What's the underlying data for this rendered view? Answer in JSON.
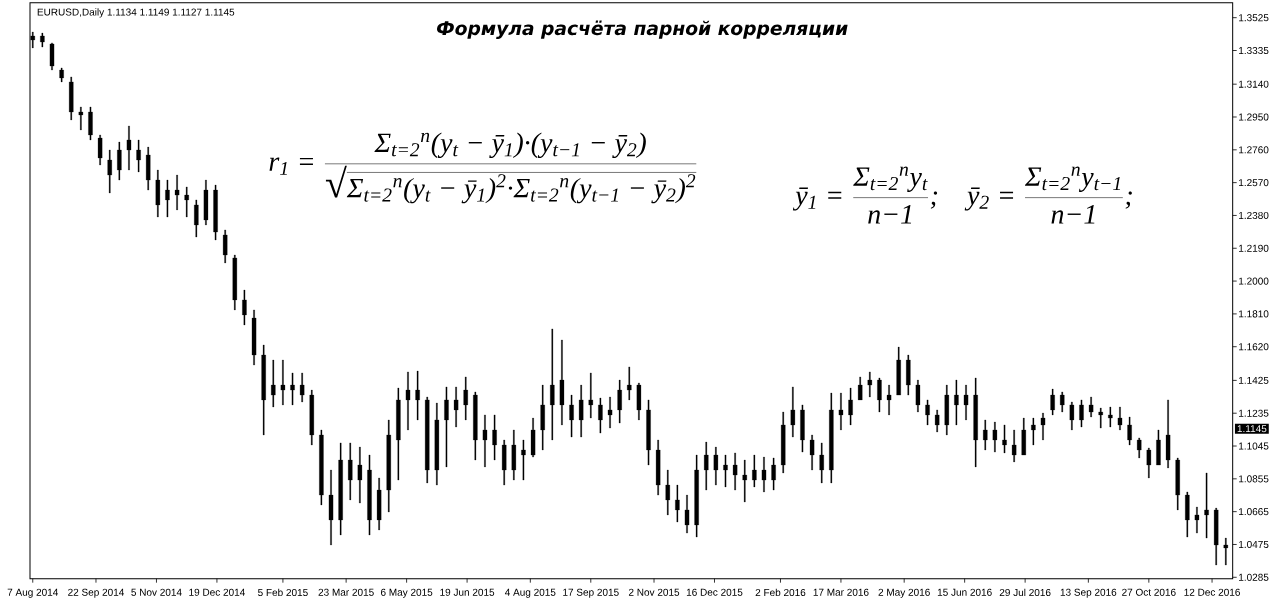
{
  "chart_data": {
    "type": "candlestick",
    "title": "Формула расчёта парной корреляции",
    "subtitle": "EURUSD,Daily 1.1134 1.1149 1.1127 1.1145",
    "annotations": [
      "r$_{1}$ =",
      "Σ$_{t=2}$$^{n}$(y$_{t}$ − ȳ$_{1}$)·(y$_{t−1}$ − ȳ$_{2}$)",
      "√",
      "Σ$_{t=2}$$^{n}$(y$_{t}$ − ȳ$_{1}$)$^{2}$·Σ$_{t=2}$$^{n}$(y$_{t−1}$ − ȳ$_{2}$)$^{2}$",
      "ȳ$_{1}$ =",
      "Σ$_{t=2}$$^{n}$y$_{t}$",
      "n−1",
      ";",
      "ȳ$_{2}$ =",
      "Σ$_{t=2}$$^{n}$y$_{t−1}$",
      "n−1",
      ";",
      "1.1145"
    ],
    "color": "#000000",
    "xlim": [
      "2014-08-05",
      "2016-12-27"
    ],
    "ylim": [
      1.0277,
      1.3612
    ],
    "xticks": [
      {
        "value": "2014-08-07",
        "label": "7 Aug 2014"
      },
      {
        "value": "2014-09-22",
        "label": "22 Sep 2014"
      },
      {
        "value": "2014-11-05",
        "label": "5 Nov 2014"
      },
      {
        "value": "2014-12-19",
        "label": "19 Dec 2014"
      },
      {
        "value": "2015-02-05",
        "label": "5 Feb 2015"
      },
      {
        "value": "2015-03-23",
        "label": "23 Mar 2015"
      },
      {
        "value": "2015-05-06",
        "label": "6 May 2015"
      },
      {
        "value": "2015-06-19",
        "label": "19 Jun 2015"
      },
      {
        "value": "2015-08-04",
        "label": "4 Aug 2015"
      },
      {
        "value": "2015-09-17",
        "label": "17 Sep 2015"
      },
      {
        "value": "2015-11-02",
        "label": "2 Nov 2015"
      },
      {
        "value": "2015-12-16",
        "label": "16 Dec 2015"
      },
      {
        "value": "2016-02-02",
        "label": "2 Feb 2016"
      },
      {
        "value": "2016-03-17",
        "label": "17 Mar 2016"
      },
      {
        "value": "2016-05-02",
        "label": "2 May 2016"
      },
      {
        "value": "2016-06-15",
        "label": "15 Jun 2016"
      },
      {
        "value": "2016-07-29",
        "label": "29 Jul 2016"
      },
      {
        "value": "2016-09-13",
        "label": "13 Sep 2016"
      },
      {
        "value": "2016-10-27",
        "label": "27 Oct 2016"
      },
      {
        "value": "2016-12-12",
        "label": "12 Dec 2016"
      }
    ],
    "yticks": [
      1.3525,
      1.3335,
      {
        "value": 1.314,
        "label": "1.3140"
      },
      {
        "value": 1.295,
        "label": "1.2950"
      },
      {
        "value": 1.276,
        "label": "1.2760"
      },
      {
        "value": 1.257,
        "label": "1.2570"
      },
      {
        "value": 1.238,
        "label": "1.2380"
      },
      {
        "value": 1.219,
        "label": "1.2190"
      },
      {
        "value": 1.2,
        "label": "1.2000"
      },
      {
        "value": 1.181,
        "label": "1.1810"
      },
      {
        "value": 1.162,
        "label": "1.1620"
      },
      1.1425,
      1.1235,
      1.1045,
      1.0855,
      1.0665,
      1.0475,
      1.0285
    ],
    "x": [
      "2014-08-07",
      "2014-08-14",
      "2014-08-21",
      "2014-08-28",
      "2014-09-04",
      "2014-09-11",
      "2014-09-18",
      "2014-09-25",
      "2014-10-02",
      "2014-10-09",
      "2014-10-16",
      "2014-10-23",
      "2014-10-30",
      "2014-11-06",
      "2014-11-13",
      "2014-11-20",
      "2014-11-27",
      "2014-12-04",
      "2014-12-11",
      "2014-12-18",
      "2014-12-25",
      "2015-01-01",
      "2015-01-08",
      "2015-01-15",
      "2015-01-22",
      "2015-01-29",
      "2015-02-05",
      "2015-02-12",
      "2015-02-19",
      "2015-02-26",
      "2015-03-05",
      "2015-03-12",
      "2015-03-19",
      "2015-03-26",
      "2015-04-02",
      "2015-04-09",
      "2015-04-16",
      "2015-04-23",
      "2015-04-30",
      "2015-05-07",
      "2015-05-14",
      "2015-05-21",
      "2015-05-28",
      "2015-06-04",
      "2015-06-11",
      "2015-06-18",
      "2015-06-25",
      "2015-07-02",
      "2015-07-09",
      "2015-07-16",
      "2015-07-23",
      "2015-07-30",
      "2015-08-06",
      "2015-08-13",
      "2015-08-20",
      "2015-08-27",
      "2015-09-03",
      "2015-09-10",
      "2015-09-17",
      "2015-09-24",
      "2015-10-01",
      "2015-10-08",
      "2015-10-15",
      "2015-10-22",
      "2015-10-29",
      "2015-11-05",
      "2015-11-12",
      "2015-11-19",
      "2015-11-26",
      "2015-12-03",
      "2015-12-10",
      "2015-12-17",
      "2015-12-24",
      "2015-12-31",
      "2016-01-07",
      "2016-01-14",
      "2016-01-21",
      "2016-01-28",
      "2016-02-04",
      "2016-02-11",
      "2016-02-18",
      "2016-02-25",
      "2016-03-03",
      "2016-03-10",
      "2016-03-17",
      "2016-03-24",
      "2016-03-31",
      "2016-04-07",
      "2016-04-14",
      "2016-04-21",
      "2016-04-28",
      "2016-05-05",
      "2016-05-12",
      "2016-05-19",
      "2016-05-26",
      "2016-06-02",
      "2016-06-09",
      "2016-06-16",
      "2016-06-23",
      "2016-06-30",
      "2016-07-07",
      "2016-07-14",
      "2016-07-21",
      "2016-07-28",
      "2016-08-04",
      "2016-08-11",
      "2016-08-18",
      "2016-08-25",
      "2016-09-01",
      "2016-09-08",
      "2016-09-15",
      "2016-09-22",
      "2016-09-29",
      "2016-10-06",
      "2016-10-13",
      "2016-10-20",
      "2016-10-27",
      "2016-11-03",
      "2016-11-10",
      "2016-11-17",
      "2016-11-24",
      "2016-12-01",
      "2016-12-08",
      "2016-12-15",
      "2016-12-22"
    ],
    "ohlc": [
      [
        1.3396,
        1.3442,
        1.335,
        1.3419
      ],
      [
        1.3419,
        1.3436,
        1.3355,
        1.3384
      ],
      [
        1.3373,
        1.3379,
        1.3222,
        1.3245
      ],
      [
        1.3222,
        1.3234,
        1.3153,
        1.3176
      ],
      [
        1.3153,
        1.3182,
        1.2933,
        1.2979
      ],
      [
        1.2979,
        1.3008,
        1.2875,
        1.2962
      ],
      [
        1.2979,
        1.3008,
        1.2817,
        1.2846
      ],
      [
        1.2828,
        1.2846,
        1.2672,
        1.2713
      ],
      [
        1.2701,
        1.2759,
        1.251,
        1.2614
      ],
      [
        1.2643,
        1.2805,
        1.2585,
        1.2759
      ],
      [
        1.2759,
        1.2898,
        1.2643,
        1.2817
      ],
      [
        1.2759,
        1.2817,
        1.2632,
        1.2701
      ],
      [
        1.273,
        1.2776,
        1.2527,
        1.2585
      ],
      [
        1.2585,
        1.2643,
        1.2371,
        1.2441
      ],
      [
        1.247,
        1.2585,
        1.2371,
        1.2527
      ],
      [
        1.2527,
        1.2614,
        1.2412,
        1.2498
      ],
      [
        1.2498,
        1.2545,
        1.2371,
        1.247
      ],
      [
        1.2441,
        1.247,
        1.2255,
        1.2325
      ],
      [
        1.2354,
        1.2585,
        1.2325,
        1.2527
      ],
      [
        1.2527,
        1.2556,
        1.2238,
        1.2284
      ],
      [
        1.2267,
        1.2296,
        1.2105,
        1.2151
      ],
      [
        1.2134,
        1.2151,
        1.1833,
        1.1891
      ],
      [
        1.1891,
        1.1948,
        1.1746,
        1.1804
      ],
      [
        1.1786,
        1.1833,
        1.1514,
        1.1572
      ],
      [
        1.1572,
        1.163,
        1.1109,
        1.1312
      ],
      [
        1.134,
        1.1543,
        1.1271,
        1.1398
      ],
      [
        1.1398,
        1.1543,
        1.1283,
        1.1369
      ],
      [
        1.1369,
        1.1468,
        1.1283,
        1.1398
      ],
      [
        1.1398,
        1.1468,
        1.13,
        1.134
      ],
      [
        1.134,
        1.1369,
        1.1051,
        1.1109
      ],
      [
        1.1109,
        1.1138,
        1.0704,
        1.0761
      ],
      [
        1.0761,
        1.0906,
        1.0472,
        1.0617
      ],
      [
        1.0617,
        1.1063,
        1.053,
        1.0964
      ],
      [
        1.0964,
        1.1063,
        1.0733,
        1.0848
      ],
      [
        1.0848,
        1.1039,
        1.0715,
        1.0935
      ],
      [
        1.0906,
        1.0993,
        1.053,
        1.0617
      ],
      [
        1.0617,
        1.086,
        1.0559,
        1.079
      ],
      [
        1.079,
        1.1196,
        1.0663,
        1.1109
      ],
      [
        1.108,
        1.1381,
        1.0848,
        1.1312
      ],
      [
        1.1312,
        1.1474,
        1.1138,
        1.1369
      ],
      [
        1.1369,
        1.1479,
        1.1196,
        1.1312
      ],
      [
        1.1312,
        1.1329,
        1.0831,
        1.0906
      ],
      [
        1.0906,
        1.1294,
        1.0819,
        1.1196
      ],
      [
        1.1196,
        1.1387,
        1.0924,
        1.1312
      ],
      [
        1.1312,
        1.1387,
        1.1155,
        1.1254
      ],
      [
        1.1283,
        1.1445,
        1.1196,
        1.1369
      ],
      [
        1.134,
        1.1358,
        1.0964,
        1.108
      ],
      [
        1.108,
        1.1225,
        1.0924,
        1.1138
      ],
      [
        1.1138,
        1.1225,
        1.0964,
        1.1051
      ],
      [
        1.1051,
        1.108,
        1.0819,
        1.0906
      ],
      [
        1.0906,
        1.1138,
        1.0848,
        1.1051
      ],
      [
        1.1022,
        1.108,
        1.0848,
        1.0993
      ],
      [
        1.0993,
        1.1207,
        1.0981,
        1.1138
      ],
      [
        1.1138,
        1.1398,
        1.1022,
        1.1283
      ],
      [
        1.1283,
        1.1723,
        1.108,
        1.1398
      ],
      [
        1.1427,
        1.1659,
        1.1167,
        1.1283
      ],
      [
        1.1283,
        1.134,
        1.1097,
        1.1196
      ],
      [
        1.1196,
        1.1398,
        1.1097,
        1.1312
      ],
      [
        1.1312,
        1.1468,
        1.1207,
        1.1283
      ],
      [
        1.1283,
        1.1323,
        1.112,
        1.1196
      ],
      [
        1.1225,
        1.1329,
        1.1149,
        1.1254
      ],
      [
        1.1254,
        1.1427,
        1.1178,
        1.1369
      ],
      [
        1.1369,
        1.1503,
        1.1312,
        1.1398
      ],
      [
        1.1398,
        1.141,
        1.1196,
        1.1254
      ],
      [
        1.1254,
        1.1312,
        1.0935,
        1.1022
      ],
      [
        1.1022,
        1.108,
        1.0761,
        1.0819
      ],
      [
        1.0819,
        1.0906,
        1.0646,
        1.0733
      ],
      [
        1.0733,
        1.0819,
        1.0605,
        1.0675
      ],
      [
        1.0675,
        1.0761,
        1.0541,
        1.0588
      ],
      [
        1.0588,
        1.0993,
        1.0518,
        1.0906
      ],
      [
        1.0906,
        1.1068,
        1.079,
        1.0993
      ],
      [
        1.0993,
        1.1039,
        1.0819,
        1.0906
      ],
      [
        1.0906,
        1.0993,
        1.0808,
        1.0935
      ],
      [
        1.0935,
        1.1005,
        1.079,
        1.0877
      ],
      [
        1.0877,
        1.0964,
        1.0721,
        1.0848
      ],
      [
        1.0848,
        1.0993,
        1.0808,
        1.0906
      ],
      [
        1.0906,
        1.0981,
        1.0779,
        1.0848
      ],
      [
        1.0848,
        1.0976,
        1.079,
        1.0935
      ],
      [
        1.0935,
        1.1242,
        1.0889,
        1.1167
      ],
      [
        1.1167,
        1.1387,
        1.1097,
        1.1254
      ],
      [
        1.1254,
        1.1283,
        1.101,
        1.108
      ],
      [
        1.108,
        1.1109,
        1.0906,
        1.0993
      ],
      [
        1.0993,
        1.1063,
        1.0831,
        1.0906
      ],
      [
        1.0906,
        1.1352,
        1.0831,
        1.1254
      ],
      [
        1.1254,
        1.1352,
        1.1138,
        1.1225
      ],
      [
        1.1225,
        1.1381,
        1.1167,
        1.1312
      ],
      [
        1.1312,
        1.1445,
        1.1312,
        1.1398
      ],
      [
        1.1398,
        1.1474,
        1.1329,
        1.1427
      ],
      [
        1.1427,
        1.1439,
        1.1242,
        1.1312
      ],
      [
        1.1312,
        1.1398,
        1.1225,
        1.134
      ],
      [
        1.134,
        1.1618,
        1.134,
        1.1543
      ],
      [
        1.1543,
        1.1572,
        1.134,
        1.1398
      ],
      [
        1.1398,
        1.1427,
        1.1242,
        1.1283
      ],
      [
        1.1283,
        1.1312,
        1.1167,
        1.1225
      ],
      [
        1.1225,
        1.1254,
        1.1126,
        1.1167
      ],
      [
        1.1167,
        1.1398,
        1.1109,
        1.134
      ],
      [
        1.134,
        1.1427,
        1.1167,
        1.1283
      ],
      [
        1.1283,
        1.1398,
        1.1196,
        1.134
      ],
      [
        1.134,
        1.1439,
        1.0924,
        1.108
      ],
      [
        1.108,
        1.1196,
        1.1022,
        1.1138
      ],
      [
        1.1138,
        1.1184,
        1.101,
        1.108
      ],
      [
        1.108,
        1.1167,
        1.1005,
        1.1051
      ],
      [
        1.1051,
        1.1138,
        1.0953,
        1.0993
      ],
      [
        1.0993,
        1.1207,
        1.0993,
        1.1138
      ],
      [
        1.1138,
        1.1207,
        1.1051,
        1.1167
      ],
      [
        1.1167,
        1.1236,
        1.108,
        1.1207
      ],
      [
        1.1254,
        1.1375,
        1.1225,
        1.134
      ],
      [
        1.134,
        1.1358,
        1.1242,
        1.1283
      ],
      [
        1.1283,
        1.13,
        1.1138,
        1.1196
      ],
      [
        1.1196,
        1.1312,
        1.1155,
        1.1283
      ],
      [
        1.1283,
        1.1329,
        1.1213,
        1.1242
      ],
      [
        1.1242,
        1.1265,
        1.1149,
        1.1225
      ],
      [
        1.1225,
        1.1271,
        1.1155,
        1.1207
      ],
      [
        1.1207,
        1.1271,
        1.1138,
        1.1167
      ],
      [
        1.1167,
        1.1213,
        1.1051,
        1.108
      ],
      [
        1.108,
        1.1092,
        1.0976,
        1.1022
      ],
      [
        1.1022,
        1.1034,
        1.086,
        1.0935
      ],
      [
        1.0935,
        1.1138,
        1.0935,
        1.108
      ],
      [
        1.1109,
        1.1312,
        1.0918,
        1.0964
      ],
      [
        1.0964,
        1.0976,
        1.0675,
        1.0761
      ],
      [
        1.0761,
        1.0779,
        1.0518,
        1.0617
      ],
      [
        1.0617,
        1.0692,
        1.0541,
        1.0646
      ],
      [
        1.0646,
        1.0889,
        1.0512,
        1.0675
      ],
      [
        1.0675,
        1.0686,
        1.0356,
        1.0472
      ],
      [
        1.0472,
        1.0512,
        1.0356,
        1.0455
      ]
    ]
  }
}
